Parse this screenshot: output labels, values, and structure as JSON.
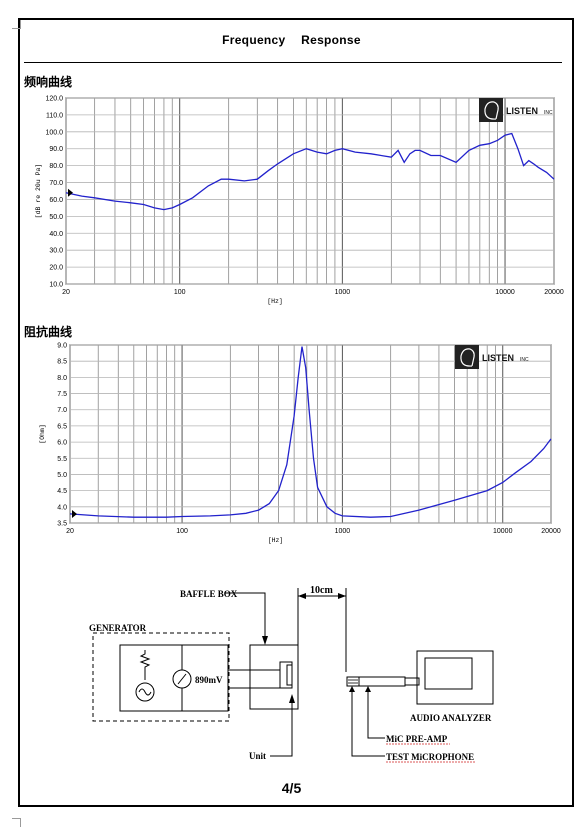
{
  "header": {
    "title": "Frequency    Response"
  },
  "sections": {
    "frequency_label": "频响曲线",
    "impedance_label": "阻抗曲线"
  },
  "logo": {
    "text": "LISTEN",
    "suffix": "INC"
  },
  "chart_data": [
    {
      "type": "line",
      "id": "frequency-response",
      "title": "",
      "xlabel": "[Hz]",
      "ylabel": "[dB re 20u Pa]",
      "xscale": "log",
      "xlim": [
        20,
        20000
      ],
      "ylim": [
        10,
        120
      ],
      "grid": true,
      "xtick_labels": [
        "20",
        "100",
        "1000",
        "10000",
        "20000"
      ],
      "xtick_values": [
        20,
        100,
        1000,
        10000,
        20000
      ],
      "ytick_labels": [
        "10.0",
        "20.0",
        "30.0",
        "40.0",
        "50.0",
        "60.0",
        "70.0",
        "80.0",
        "90.0",
        "100.0",
        "110.0",
        "120.0"
      ],
      "color": "#2222cc",
      "series": [
        {
          "x": [
            20,
            25,
            30,
            40,
            50,
            60,
            70,
            80,
            90,
            100,
            120,
            150,
            180,
            200,
            250,
            300,
            350,
            400,
            500,
            600,
            700,
            800,
            900,
            1000,
            1200,
            1500,
            2000,
            2200,
            2400,
            2600,
            2800,
            3000,
            3500,
            4000,
            5000,
            6000,
            7000,
            8000,
            9000,
            10000,
            11000,
            12000,
            13000,
            14000,
            15000,
            16000,
            18000,
            20000
          ],
          "y": [
            64,
            62,
            61,
            59,
            58,
            57,
            55,
            54,
            55,
            57,
            61,
            68,
            72,
            72,
            71,
            72,
            77,
            81,
            87,
            90,
            88,
            87,
            89,
            90,
            88,
            87,
            85,
            89,
            82,
            87,
            89,
            89,
            86,
            86,
            82,
            89,
            92,
            93,
            95,
            98,
            99,
            90,
            80,
            83,
            81,
            79,
            76,
            72
          ]
        }
      ]
    },
    {
      "type": "line",
      "id": "impedance",
      "title": "",
      "xlabel": "[Hz]",
      "ylabel": "[Ohm]",
      "xscale": "log",
      "xlim": [
        20,
        20000
      ],
      "ylim": [
        3.5,
        9.0
      ],
      "grid": true,
      "xtick_labels": [
        "20",
        "100",
        "1000",
        "10000",
        "20000"
      ],
      "xtick_values": [
        20,
        100,
        1000,
        10000,
        20000
      ],
      "ytick_labels": [
        "3.5",
        "4.0",
        "4.5",
        "5.0",
        "5.5",
        "6.0",
        "6.5",
        "7.0",
        "7.5",
        "8.0",
        "8.5",
        "9.0"
      ],
      "color": "#2222cc",
      "series": [
        {
          "x": [
            20,
            30,
            50,
            80,
            100,
            150,
            200,
            250,
            300,
            350,
            400,
            450,
            500,
            530,
            560,
            590,
            620,
            660,
            700,
            800,
            900,
            1000,
            1500,
            2000,
            3000,
            5000,
            8000,
            10000,
            12000,
            15000,
            18000,
            20000
          ],
          "y": [
            3.78,
            3.72,
            3.68,
            3.68,
            3.7,
            3.72,
            3.75,
            3.8,
            3.9,
            4.1,
            4.5,
            5.3,
            6.8,
            8.0,
            8.95,
            8.3,
            7.0,
            5.5,
            4.6,
            4.0,
            3.8,
            3.72,
            3.68,
            3.7,
            3.9,
            4.2,
            4.5,
            4.75,
            5.05,
            5.4,
            5.8,
            6.1
          ]
        }
      ]
    }
  ],
  "diagram": {
    "baffle_box": "BAFFLE BOX",
    "distance": "10cm",
    "generator": "GENERATOR",
    "voltage": "890mV",
    "audio_analyzer": "AUDIO ANALYZER",
    "mic_preamp": "MiC PRE-AMP",
    "test_mic": "TEST MiCROPHONE",
    "unit": "Unit"
  },
  "footer": {
    "page": "4/5"
  }
}
